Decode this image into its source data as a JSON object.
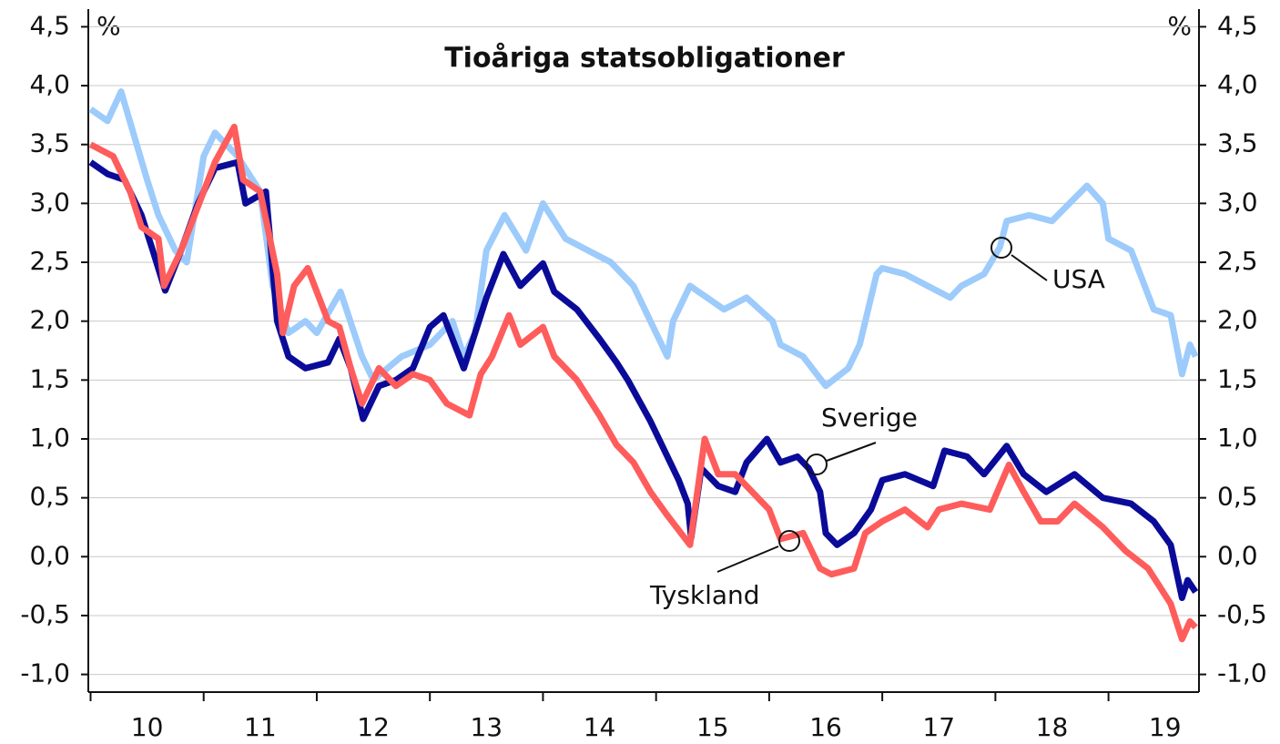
{
  "chart_data": {
    "type": "line",
    "title": "Tioåriga statsobligationer",
    "ylabel": "%",
    "y2label": "%",
    "xlim": [
      2009.98,
      2019.8
    ],
    "xticks": [
      {
        "value": 2010,
        "label": "10"
      },
      {
        "value": 2011,
        "label": "11"
      },
      {
        "value": 2012,
        "label": "12"
      },
      {
        "value": 2013,
        "label": "13"
      },
      {
        "value": 2014,
        "label": "14"
      },
      {
        "value": 2015,
        "label": "15"
      },
      {
        "value": 2016,
        "label": "16"
      },
      {
        "value": 2017,
        "label": "17"
      },
      {
        "value": 2018,
        "label": "18"
      },
      {
        "value": 2019,
        "label": "19"
      }
    ],
    "ylim": [
      -1.15,
      4.65
    ],
    "yticks": [
      {
        "value": 4.5,
        "label": "4,5"
      },
      {
        "value": 4.0,
        "label": "4,0"
      },
      {
        "value": 3.5,
        "label": "3,5"
      },
      {
        "value": 3.0,
        "label": "3,0"
      },
      {
        "value": 2.5,
        "label": "2,5"
      },
      {
        "value": 2.0,
        "label": "2,0"
      },
      {
        "value": 1.5,
        "label": "1,5"
      },
      {
        "value": 1.0,
        "label": "1,0"
      },
      {
        "value": 0.5,
        "label": "0,5"
      },
      {
        "value": 0.0,
        "label": "0,0"
      },
      {
        "value": -0.5,
        "label": "-0,5"
      },
      {
        "value": -1.0,
        "label": "-1,0"
      }
    ],
    "y2lim": [
      -1.15,
      4.65
    ],
    "y2ticks": [
      {
        "value": 4.5,
        "label": "4,5"
      },
      {
        "value": 4.0,
        "label": "4,0"
      },
      {
        "value": 3.5,
        "label": "3,5"
      },
      {
        "value": 3.0,
        "label": "3,0"
      },
      {
        "value": 2.5,
        "label": "2,5"
      },
      {
        "value": 2.0,
        "label": "2,0"
      },
      {
        "value": 1.5,
        "label": "1,5"
      },
      {
        "value": 1.0,
        "label": "1,0"
      },
      {
        "value": 0.5,
        "label": "0,5"
      },
      {
        "value": 0.0,
        "label": "0,0"
      },
      {
        "value": -0.5,
        "label": "-0,5"
      },
      {
        "value": -1.0,
        "label": "-1,0"
      }
    ],
    "grid": true,
    "series": [
      {
        "name": "USA",
        "color": "#9dcbfb",
        "x": [
          2010.0,
          2010.15,
          2010.27,
          2010.5,
          2010.6,
          2010.75,
          2010.85,
          2011.0,
          2011.1,
          2011.3,
          2011.5,
          2011.61,
          2011.75,
          2011.9,
          2012.0,
          2012.21,
          2012.4,
          2012.5,
          2012.75,
          2013.0,
          2013.2,
          2013.3,
          2013.4,
          2013.5,
          2013.66,
          2013.85,
          2014.0,
          2014.2,
          2014.4,
          2014.6,
          2014.8,
          2015.1,
          2015.15,
          2015.3,
          2015.45,
          2015.6,
          2015.8,
          2016.03,
          2016.1,
          2016.3,
          2016.5,
          2016.7,
          2016.8,
          2016.95,
          2017.0,
          2017.2,
          2017.4,
          2017.6,
          2017.7,
          2017.9,
          2018.04,
          2018.1,
          2018.3,
          2018.5,
          2018.81,
          2018.95,
          2019.0,
          2019.2,
          2019.4,
          2019.55,
          2019.65,
          2019.72,
          2019.77
        ],
        "values": [
          3.8,
          3.7,
          3.95,
          3.2,
          2.9,
          2.6,
          2.5,
          3.4,
          3.6,
          3.4,
          3.1,
          2.3,
          1.9,
          2.0,
          1.9,
          2.25,
          1.7,
          1.5,
          1.7,
          1.8,
          2.0,
          1.7,
          1.9,
          2.6,
          2.9,
          2.6,
          3.0,
          2.7,
          2.6,
          2.5,
          2.3,
          1.7,
          2.0,
          2.3,
          2.2,
          2.1,
          2.2,
          2.0,
          1.8,
          1.7,
          1.45,
          1.6,
          1.8,
          2.4,
          2.45,
          2.4,
          2.3,
          2.2,
          2.3,
          2.4,
          2.63,
          2.85,
          2.9,
          2.85,
          3.15,
          3.0,
          2.7,
          2.6,
          2.1,
          2.05,
          1.55,
          1.8,
          1.7
        ]
      },
      {
        "name": "Sverige",
        "color": "#0b0b99",
        "x": [
          2010.0,
          2010.15,
          2010.3,
          2010.45,
          2010.55,
          2010.66,
          2010.8,
          2010.95,
          2011.1,
          2011.3,
          2011.37,
          2011.55,
          2011.65,
          2011.75,
          2011.9,
          2012.1,
          2012.2,
          2012.3,
          2012.41,
          2012.55,
          2012.7,
          2012.85,
          2013.0,
          2013.12,
          2013.3,
          2013.5,
          2013.65,
          2013.8,
          2014.0,
          2014.1,
          2014.3,
          2014.5,
          2014.65,
          2014.75,
          2014.95,
          2015.1,
          2015.2,
          2015.28,
          2015.31,
          2015.4,
          2015.55,
          2015.7,
          2015.8,
          2015.98,
          2016.1,
          2016.25,
          2016.35,
          2016.45,
          2016.5,
          2016.6,
          2016.75,
          2016.9,
          2017.0,
          2017.2,
          2017.45,
          2017.55,
          2017.75,
          2017.9,
          2018.1,
          2018.25,
          2018.45,
          2018.7,
          2018.95,
          2019.2,
          2019.4,
          2019.55,
          2019.65,
          2019.7,
          2019.77
        ],
        "values": [
          3.35,
          3.25,
          3.2,
          2.9,
          2.6,
          2.26,
          2.6,
          3.0,
          3.3,
          3.35,
          3.0,
          3.1,
          2.0,
          1.7,
          1.6,
          1.65,
          1.85,
          1.6,
          1.17,
          1.45,
          1.5,
          1.6,
          1.95,
          2.05,
          1.6,
          2.2,
          2.57,
          2.3,
          2.49,
          2.25,
          2.1,
          1.85,
          1.65,
          1.5,
          1.15,
          0.85,
          0.65,
          0.45,
          0.16,
          0.75,
          0.6,
          0.55,
          0.8,
          1.0,
          0.8,
          0.85,
          0.75,
          0.55,
          0.2,
          0.1,
          0.2,
          0.4,
          0.65,
          0.7,
          0.6,
          0.9,
          0.85,
          0.7,
          0.94,
          0.7,
          0.55,
          0.7,
          0.5,
          0.45,
          0.3,
          0.1,
          -0.35,
          -0.2,
          -0.3
        ]
      },
      {
        "name": "Tyskland",
        "color": "#ff5c5c",
        "x": [
          2010.0,
          2010.2,
          2010.35,
          2010.45,
          2010.6,
          2010.65,
          2010.8,
          2011.0,
          2011.1,
          2011.27,
          2011.35,
          2011.5,
          2011.65,
          2011.7,
          2011.8,
          2011.92,
          2012.1,
          2012.2,
          2012.3,
          2012.4,
          2012.55,
          2012.7,
          2012.85,
          2013.0,
          2013.15,
          2013.35,
          2013.45,
          2013.55,
          2013.7,
          2013.8,
          2014.0,
          2014.1,
          2014.3,
          2014.5,
          2014.65,
          2014.8,
          2014.95,
          2015.1,
          2015.3,
          2015.43,
          2015.55,
          2015.7,
          2015.85,
          2016.0,
          2016.1,
          2016.3,
          2016.45,
          2016.55,
          2016.75,
          2016.85,
          2017.0,
          2017.2,
          2017.4,
          2017.5,
          2017.7,
          2017.95,
          2018.12,
          2018.25,
          2018.4,
          2018.55,
          2018.7,
          2018.95,
          2019.15,
          2019.35,
          2019.55,
          2019.65,
          2019.72,
          2019.77
        ],
        "values": [
          3.5,
          3.4,
          3.1,
          2.8,
          2.7,
          2.3,
          2.6,
          3.1,
          3.35,
          3.65,
          3.2,
          3.1,
          2.4,
          1.9,
          2.3,
          2.45,
          2.0,
          1.95,
          1.6,
          1.3,
          1.6,
          1.45,
          1.55,
          1.5,
          1.3,
          1.2,
          1.55,
          1.7,
          2.05,
          1.8,
          1.95,
          1.7,
          1.5,
          1.2,
          0.95,
          0.8,
          0.55,
          0.35,
          0.1,
          1.0,
          0.7,
          0.7,
          0.55,
          0.4,
          0.15,
          0.2,
          -0.1,
          -0.15,
          -0.1,
          0.2,
          0.3,
          0.4,
          0.25,
          0.4,
          0.45,
          0.4,
          0.78,
          0.55,
          0.3,
          0.3,
          0.45,
          0.25,
          0.05,
          -0.1,
          -0.4,
          -0.7,
          -0.55,
          -0.6
        ]
      }
    ]
  }
}
